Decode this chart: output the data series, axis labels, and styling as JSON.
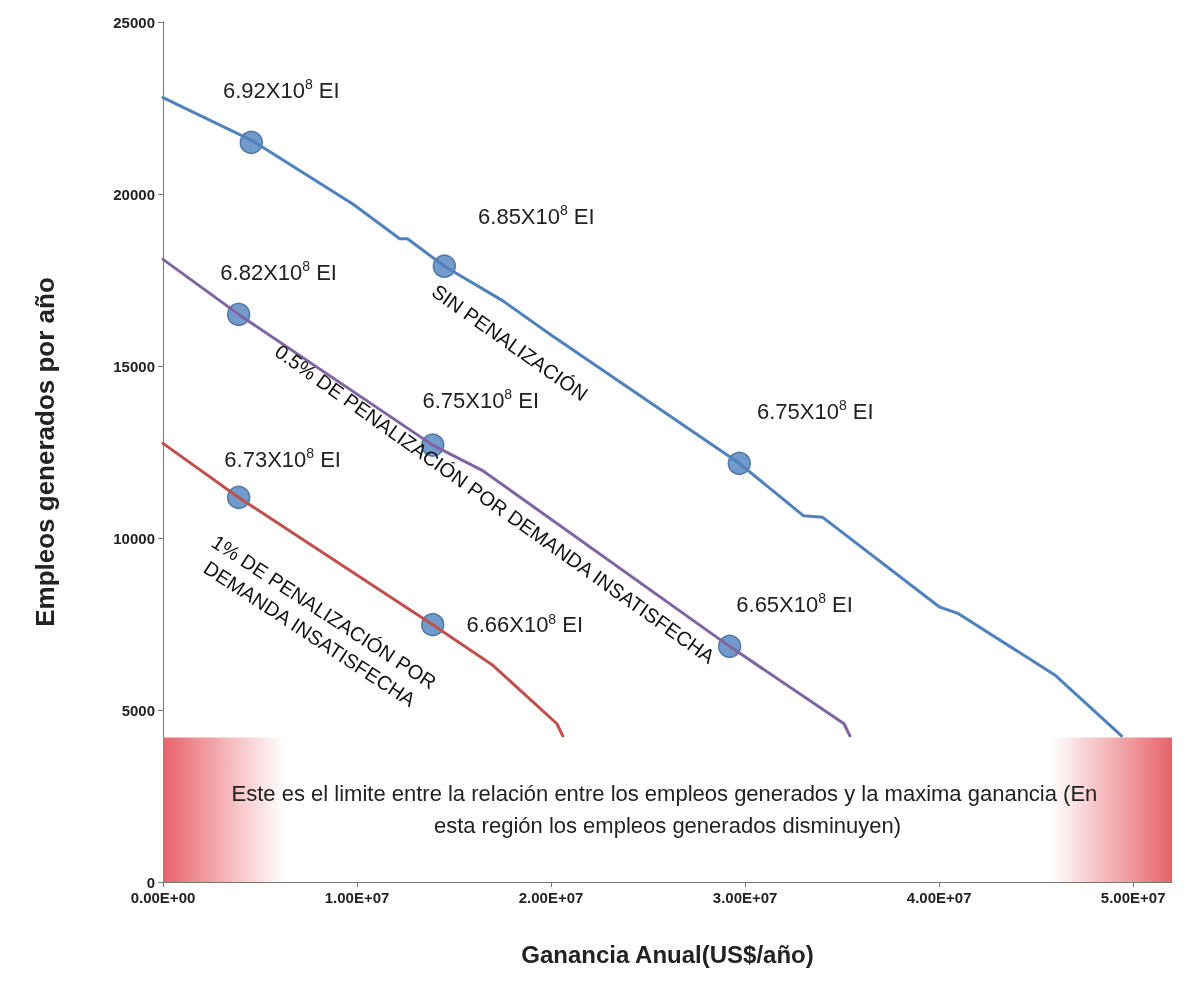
{
  "chart_data": {
    "type": "line",
    "xlabel": "Ganancia Anual(US$/año)",
    "ylabel": "Empleos generados por año",
    "xlim": [
      0,
      52000000
    ],
    "xticks": [
      {
        "value": 0,
        "label": "0.00E+00"
      },
      {
        "value": 10000000,
        "label": "1.00E+07"
      },
      {
        "value": 20000000,
        "label": "2.00E+07"
      },
      {
        "value": 30000000,
        "label": "3.00E+07"
      },
      {
        "value": 40000000,
        "label": "4.00E+07"
      },
      {
        "value": 50000000,
        "label": "5.00E+07"
      }
    ],
    "ylim": [
      0,
      25000
    ],
    "yticks": [
      0,
      5000,
      10000,
      15000,
      20000,
      25000
    ],
    "grid": false,
    "legend": false,
    "marker": "none",
    "line_style": "solid",
    "series": [
      {
        "name": "SIN PENALIZACIÓN",
        "color": "#4f81bd",
        "x": [
          0,
          4600000,
          9800000,
          12200000,
          12600000,
          14500000,
          17500000,
          20000000,
          29700000,
          33000000,
          34000000,
          40000000,
          41000000,
          46000000,
          49400000
        ],
        "values": [
          22800,
          21550,
          19700,
          18700,
          18700,
          17900,
          16900,
          15900,
          12170,
          10650,
          10600,
          8000,
          7800,
          6000,
          4250
        ]
      },
      {
        "name": "0.5% DE PENALIZACIÓN POR DEMANDA INSATISFECHA",
        "color": "#8064a2",
        "x": [
          0,
          3900000,
          13900000,
          16500000,
          29200000,
          35100000,
          35400000
        ],
        "values": [
          18100,
          16500,
          12700,
          11950,
          6850,
          4600,
          4250
        ]
      },
      {
        "name": "1% DE PENALIZACIÓN POR\nDEMANDA INSATISFECHA",
        "color": "#c0504d",
        "x": [
          0,
          3900000,
          13900000,
          17000000,
          20300000,
          20600000
        ],
        "values": [
          12750,
          11180,
          7480,
          6300,
          4600,
          4250
        ]
      },
      {
        "type": "scatter",
        "marker": "circle",
        "color": "#4f81bd",
        "x": [
          4550000,
          14500000,
          29700000,
          3900000,
          13900000,
          29200000,
          3900000,
          13900000
        ],
        "values": [
          21500,
          17900,
          12170,
          16500,
          12700,
          6850,
          11180,
          7480
        ]
      }
    ],
    "bands": [
      {
        "axis": "y",
        "from": 0,
        "to": 4200,
        "color": "#e8636b",
        "label": "Este es el limite entre la relación entre los empleos generados y la maxima ganancia (En esta región los empleos generados disminuyen)"
      }
    ],
    "annotations": [
      {
        "text": "6.92X10$^{8}$ EI",
        "x": 4550000,
        "y": 21500
      },
      {
        "text": "6.85X10$^{8}$ EI",
        "x": 14500000,
        "y": 17900
      },
      {
        "text": "6.75X10$^{8}$ EI",
        "x": 29700000,
        "y": 12170
      },
      {
        "text": "6.82X10$^{8}$ EI",
        "x": 3900000,
        "y": 16500
      },
      {
        "text": "6.75X10$^{8}$ EI",
        "x": 13900000,
        "y": 12700
      },
      {
        "text": "6.65X10$^{8}$ EI",
        "x": 29200000,
        "y": 6850
      },
      {
        "text": "6.73X10$^{8}$ EI",
        "x": 3900000,
        "y": 11180
      },
      {
        "text": "6.66X10$^{8}$ EI",
        "x": 13900000,
        "y": 7480
      }
    ]
  }
}
